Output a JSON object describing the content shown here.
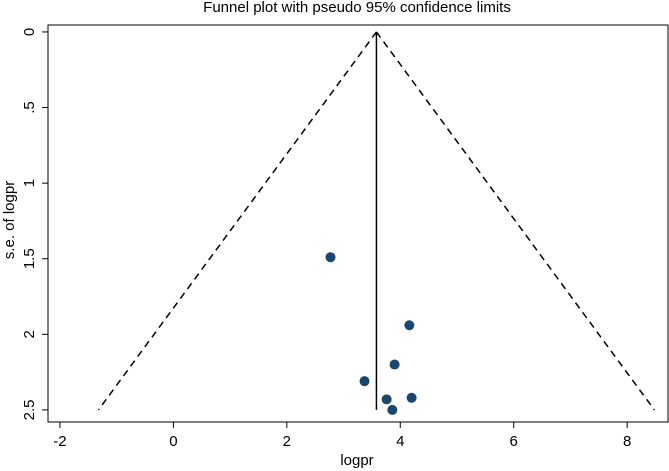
{
  "chart_data": {
    "type": "scatter",
    "title": "Funnel plot with pseudo 95% confidence limits",
    "x_label": "logpr",
    "y_label": "s.e. of logpr",
    "x": [
      2.77,
      4.16,
      3.9,
      3.37,
      3.76,
      4.2,
      3.86
    ],
    "values": [
      1.49,
      1.94,
      2.2,
      2.31,
      2.43,
      2.42,
      2.5
    ],
    "color": "#1a476f",
    "lines": [
      {
        "x": [
          3.58,
          3.58
        ],
        "y": [
          0,
          2.5
        ],
        "dashed": false
      },
      {
        "x": [
          3.58,
          -1.32
        ],
        "y": [
          0,
          2.5
        ],
        "dashed": true
      },
      {
        "x": [
          3.58,
          8.48
        ],
        "y": [
          0,
          2.5
        ],
        "dashed": true
      }
    ],
    "xlim": [
      -2.21,
      8.72
    ],
    "ylim": [
      -0.046,
      2.58
    ],
    "y_reversed": true,
    "xticks": [
      -2,
      0,
      2,
      4,
      6,
      8
    ],
    "yticks": [
      0,
      {
        "value": 0.5,
        "label": ".5"
      },
      1,
      1.5,
      2,
      2.5
    ]
  }
}
